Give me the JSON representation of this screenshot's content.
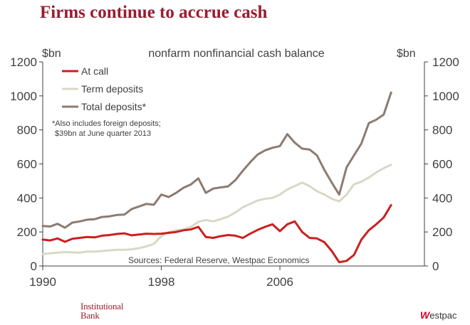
{
  "page": {
    "title": "Firms continue to accrue cash",
    "logo_left_line1": "Institutional",
    "logo_left_line2": "Bank",
    "logo_right_mark": "W",
    "logo_right_text": "estpac"
  },
  "colors": {
    "title": "#9b1b30",
    "at_call": "#cc1f1f",
    "term_deposits": "#d9d8c6",
    "total_deposits": "#8c7b70",
    "axis": "#404040"
  },
  "chart_data": {
    "type": "line",
    "title": "nonfarm nonfinancial cash balance",
    "ylabel_left": "$bn",
    "ylabel_right": "$bn",
    "source": "Sources: Federal Reserve, Westpac Economics",
    "footnote_line1": "*Also includes foreign deposits;",
    "footnote_line2": "$39bn at June quarter 2013",
    "xlim": [
      1990,
      2015.75
    ],
    "ylim": [
      0,
      1200
    ],
    "x_ticks": [
      1990,
      1998,
      2006
    ],
    "y_ticks": [
      0,
      200,
      400,
      600,
      800,
      1000,
      1200
    ],
    "legend_position": "top-left",
    "x": [
      1990.0,
      1990.5,
      1991.0,
      1991.5,
      1992.0,
      1992.5,
      1993.0,
      1993.5,
      1994.0,
      1994.5,
      1995.0,
      1995.5,
      1996.0,
      1996.5,
      1997.0,
      1997.5,
      1998.0,
      1998.5,
      1999.0,
      1999.5,
      2000.0,
      2000.5,
      2001.0,
      2001.5,
      2002.0,
      2002.5,
      2003.0,
      2003.5,
      2004.0,
      2004.5,
      2005.0,
      2005.5,
      2006.0,
      2006.5,
      2007.0,
      2007.5,
      2008.0,
      2008.5,
      2009.0,
      2009.5,
      2010.0,
      2010.5,
      2011.0,
      2011.5,
      2012.0,
      2012.5,
      2013.0,
      2013.5
    ],
    "series": [
      {
        "name": "At call",
        "values": [
          155,
          150,
          162,
          142,
          160,
          165,
          170,
          168,
          178,
          182,
          188,
          192,
          180,
          185,
          190,
          188,
          190,
          195,
          200,
          210,
          215,
          230,
          170,
          165,
          175,
          182,
          178,
          165,
          190,
          212,
          230,
          245,
          205,
          245,
          262,
          200,
          165,
          162,
          140,
          88,
          22,
          30,
          65,
          155,
          210,
          245,
          285,
          358
        ]
      },
      {
        "name": "Term deposits",
        "values": [
          70,
          75,
          78,
          82,
          80,
          78,
          85,
          85,
          88,
          92,
          95,
          95,
          98,
          105,
          115,
          130,
          175,
          200,
          210,
          215,
          230,
          260,
          270,
          262,
          275,
          290,
          315,
          345,
          365,
          385,
          395,
          400,
          420,
          450,
          470,
          490,
          470,
          440,
          420,
          395,
          380,
          420,
          480,
          495,
          520,
          550,
          575,
          595
        ]
      },
      {
        "name": "Total deposits*",
        "values": [
          235,
          232,
          248,
          225,
          255,
          262,
          272,
          275,
          288,
          292,
          300,
          302,
          335,
          350,
          365,
          360,
          420,
          405,
          430,
          460,
          480,
          515,
          430,
          455,
          462,
          468,
          505,
          560,
          610,
          655,
          680,
          695,
          705,
          775,
          725,
          690,
          685,
          650,
          565,
          490,
          420,
          580,
          650,
          720,
          840,
          860,
          890,
          1020
        ]
      }
    ]
  }
}
